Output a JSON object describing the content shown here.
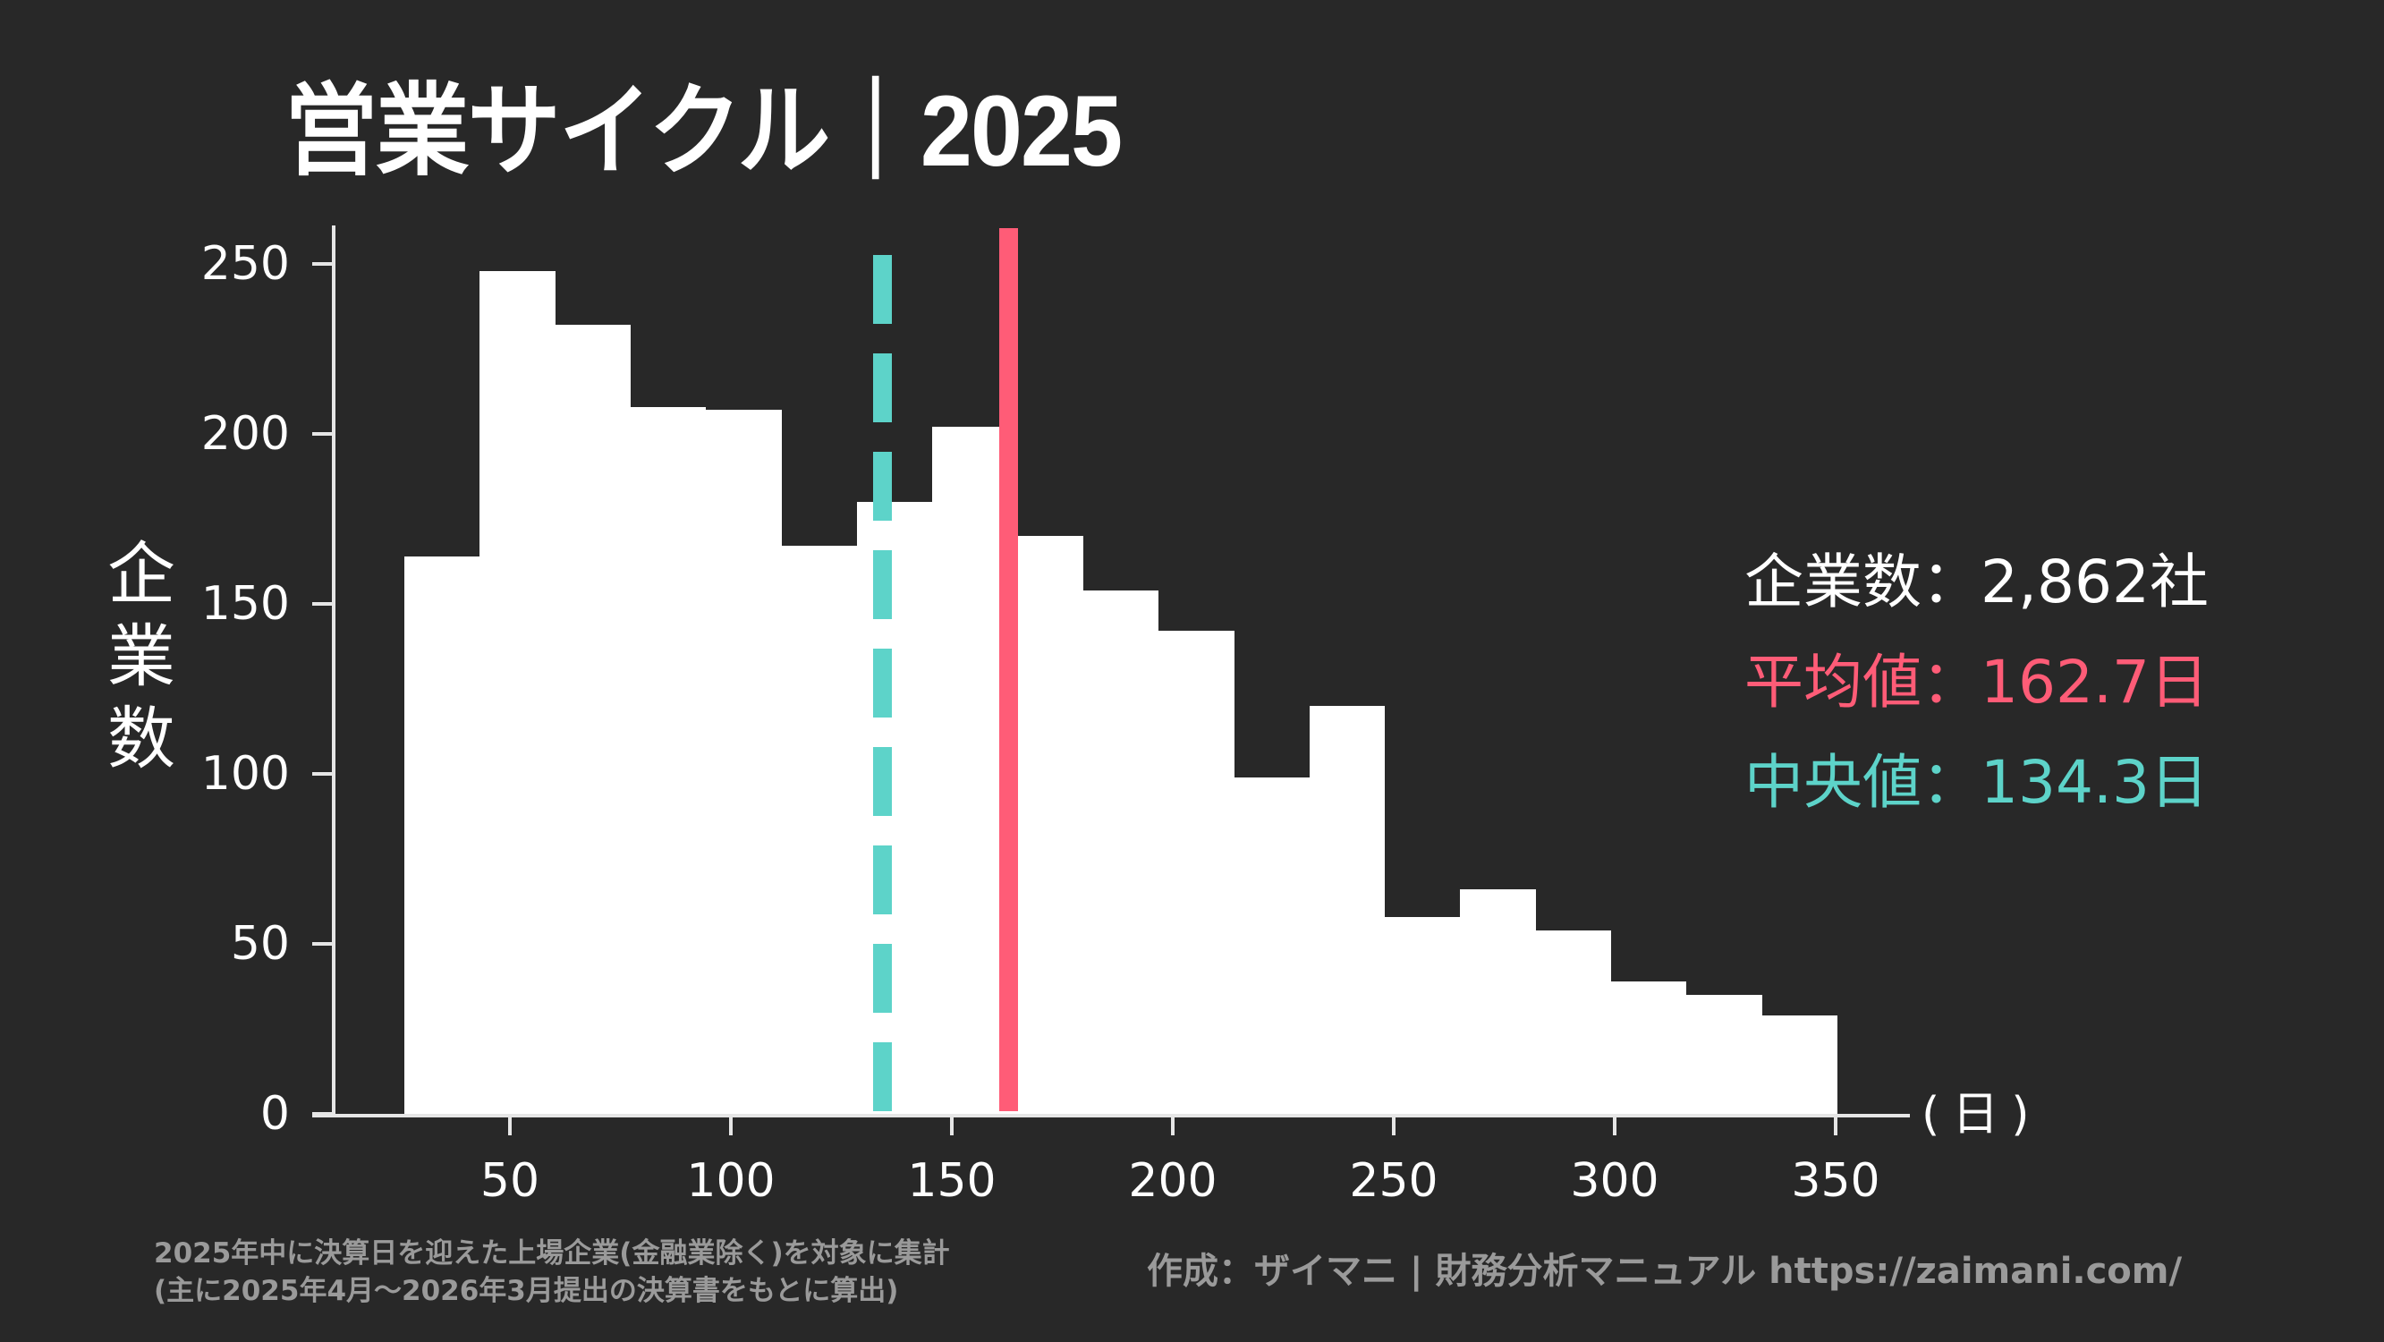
{
  "title": "営業サイクル｜2025",
  "colors": {
    "background": "#282828",
    "bars": "#ffffff",
    "axis": "#e6e6e6",
    "mean": "#FF5C77",
    "median": "#5DD3C9",
    "note": "#9a9a9a"
  },
  "stats": {
    "count_label": "企業数：",
    "count_value": "2,862社",
    "mean_label": "平均値：",
    "mean_value": "162.7日",
    "median_label": "中央値：",
    "median_value": "134.3日"
  },
  "axes": {
    "ylabel_chars": [
      "企",
      "業",
      "数"
    ],
    "xunit": "(日)"
  },
  "note": {
    "line1": "2025年中に決算日を迎えた上場企業(金融業除く)を対象に集計",
    "line2": "(主に2025年4月～2026年3月提出の決算書をもとに算出)"
  },
  "credit": "作成：ザイマニ | 財務分析マニュアル https://zaimani.com/",
  "chart_data": {
    "type": "bar",
    "subtype": "histogram",
    "title": "営業サイクル｜2025",
    "xlabel": "(日)",
    "ylabel": "企業数",
    "bin_start": 26.1,
    "bin_width": 17.07,
    "bin_edges": [
      26.1,
      43.2,
      60.2,
      77.3,
      94.4,
      111.4,
      128.5,
      145.6,
      162.6,
      179.7,
      196.8,
      213.9,
      230.9,
      248.0,
      265.1,
      282.1,
      299.2,
      316.3,
      333.3,
      350.4
    ],
    "values": [
      164,
      248,
      232,
      208,
      207,
      167,
      180,
      202,
      170,
      154,
      142,
      99,
      120,
      58,
      66,
      54,
      39,
      35,
      29
    ],
    "xticks": [
      50,
      100,
      150,
      200,
      250,
      300,
      350
    ],
    "yticks": [
      0,
      50,
      100,
      150,
      200,
      250
    ],
    "xlim": [
      0,
      360
    ],
    "ylim": [
      0,
      260
    ],
    "grid": false,
    "reference_lines": [
      {
        "name": "平均値",
        "value": 162.7,
        "style": "solid",
        "color": "#FF5C77"
      },
      {
        "name": "中央値",
        "value": 134.3,
        "style": "dashed",
        "color": "#5DD3C9"
      }
    ],
    "annotations": [
      "企業数：2,862社",
      "平均値：162.7日",
      "中央値：134.3日"
    ]
  }
}
